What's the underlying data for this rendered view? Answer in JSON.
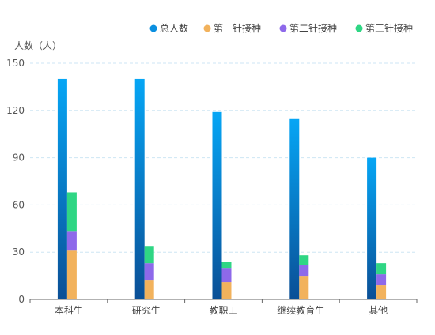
{
  "chart_data": {
    "type": "bar",
    "title": "",
    "ylabel": "人数（人）",
    "xlabel": "",
    "ylim": [
      0,
      150
    ],
    "yticks": [
      0,
      30,
      60,
      90,
      120,
      150
    ],
    "grid": true,
    "legend_position": "top-right",
    "categories": [
      "本科生",
      "研究生",
      "教职工",
      "继续教育生",
      "其他"
    ],
    "series": [
      {
        "name": "总人数",
        "values": [
          140,
          140,
          119,
          115,
          90
        ],
        "color": "#0a8fe0",
        "stack": "total"
      },
      {
        "name": "第一针接种",
        "values": [
          31,
          12,
          11,
          15,
          9
        ],
        "color": "#f2b25c",
        "stack": "dose"
      },
      {
        "name": "第二针接种",
        "values": [
          12,
          11,
          9,
          7,
          7
        ],
        "color": "#8e69ea",
        "stack": "dose"
      },
      {
        "name": "第三针接种",
        "values": [
          25,
          11,
          4,
          6,
          7
        ],
        "color": "#2fd684",
        "stack": "dose"
      }
    ]
  }
}
